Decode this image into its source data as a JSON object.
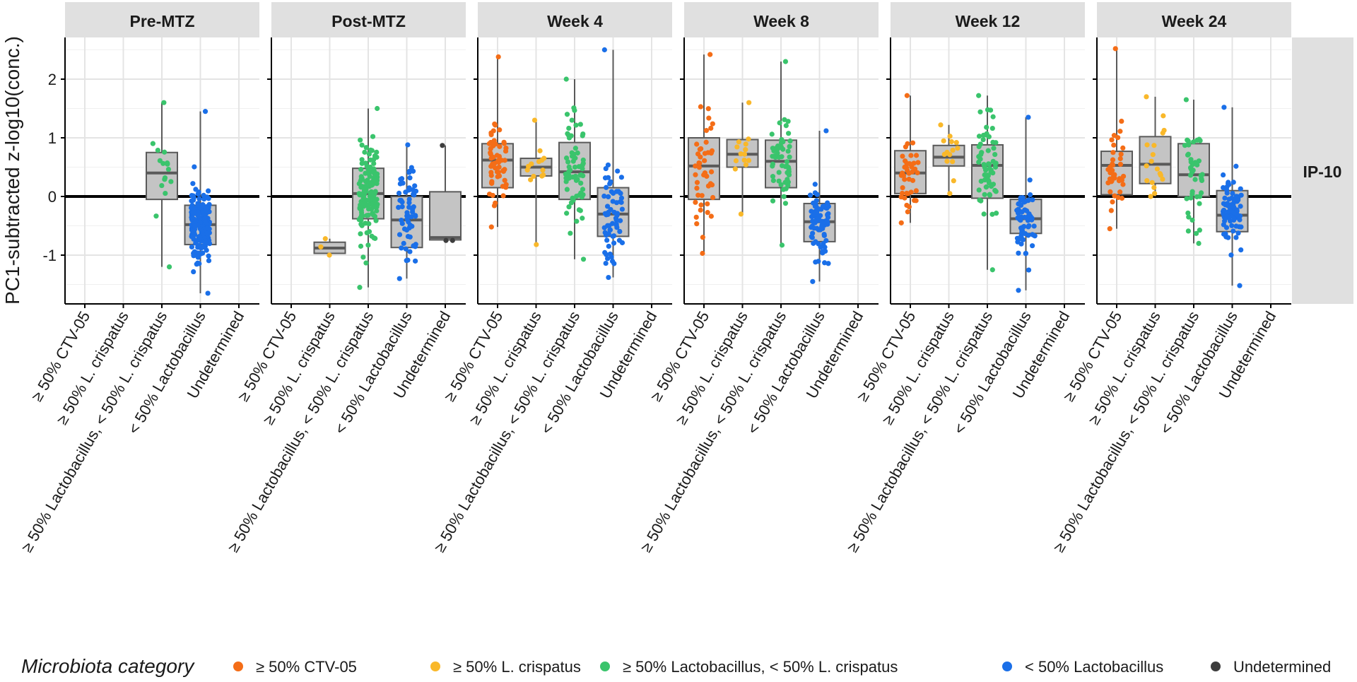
{
  "chart_data": {
    "type": "boxplot",
    "ylabel": "PC1-subtracted z-log10(conc.)",
    "row_strip": "IP-10",
    "ylim": [
      -1.85,
      2.7
    ],
    "yticks": [
      -1,
      0,
      1,
      2
    ],
    "reference_line_y": 0,
    "grid": true,
    "categories": [
      "≥ 50% CTV-05",
      "≥ 50% L. crispatus",
      "≥ 50% Lactobacillus, < 50% L. crispatus",
      "< 50% Lactobacillus",
      "Undetermined"
    ],
    "colors": [
      "#f46d17",
      "#f9b82a",
      "#3ac46c",
      "#1a6fe8",
      "#3d3d3d"
    ],
    "box_fill": "#c4c4c4",
    "box_stroke": "#5a5a5a",
    "panels": [
      {
        "title": "Pre-MTZ",
        "groups": [
          null,
          null,
          {
            "q1": -0.05,
            "median": 0.4,
            "q3": 0.75,
            "lo": -1.2,
            "hi": 1.6,
            "n": 16
          },
          {
            "q1": -0.82,
            "median": -0.48,
            "q3": -0.15,
            "lo": -1.65,
            "hi": 1.45,
            "n": 190
          },
          null
        ]
      },
      {
        "title": "Post-MTZ",
        "groups": [
          null,
          {
            "q1": -0.97,
            "median": -0.88,
            "q3": -0.78,
            "lo": -1.0,
            "hi": -0.72,
            "n": 3
          },
          {
            "q1": -0.38,
            "median": 0.05,
            "q3": 0.48,
            "lo": -1.55,
            "hi": 1.5,
            "n": 140
          },
          {
            "q1": -0.87,
            "median": -0.4,
            "q3": 0.0,
            "lo": -1.4,
            "hi": 0.88,
            "n": 60
          },
          {
            "q1": -0.74,
            "median": -0.7,
            "q3": 0.08,
            "lo": -0.75,
            "hi": 0.87,
            "n": 3
          }
        ]
      },
      {
        "title": "Week 4",
        "groups": [
          {
            "q1": 0.15,
            "median": 0.62,
            "q3": 0.9,
            "lo": -0.52,
            "hi": 2.38,
            "n": 55
          },
          {
            "q1": 0.35,
            "median": 0.5,
            "q3": 0.65,
            "lo": -0.82,
            "hi": 1.3,
            "n": 14
          },
          {
            "q1": -0.05,
            "median": 0.42,
            "q3": 0.92,
            "lo": -1.07,
            "hi": 2.0,
            "n": 65
          },
          {
            "q1": -0.68,
            "median": -0.3,
            "q3": 0.15,
            "lo": -1.38,
            "hi": 2.5,
            "n": 65
          },
          null
        ]
      },
      {
        "title": "Week 8",
        "groups": [
          {
            "q1": -0.05,
            "median": 0.52,
            "q3": 1.0,
            "lo": -0.97,
            "hi": 2.42,
            "n": 45
          },
          {
            "q1": 0.5,
            "median": 0.72,
            "q3": 0.97,
            "lo": -0.3,
            "hi": 1.6,
            "n": 14
          },
          {
            "q1": 0.15,
            "median": 0.6,
            "q3": 0.96,
            "lo": -0.83,
            "hi": 2.3,
            "n": 55
          },
          {
            "q1": -0.77,
            "median": -0.43,
            "q3": -0.12,
            "lo": -1.45,
            "hi": 1.12,
            "n": 75
          },
          null
        ]
      },
      {
        "title": "Week 12",
        "groups": [
          {
            "q1": 0.05,
            "median": 0.4,
            "q3": 0.78,
            "lo": -0.45,
            "hi": 1.72,
            "n": 40
          },
          {
            "q1": 0.52,
            "median": 0.67,
            "q3": 0.87,
            "lo": 0.05,
            "hi": 1.22,
            "n": 14
          },
          {
            "q1": -0.03,
            "median": 0.53,
            "q3": 0.88,
            "lo": -1.25,
            "hi": 1.72,
            "n": 65
          },
          {
            "q1": -0.63,
            "median": -0.38,
            "q3": -0.05,
            "lo": -1.6,
            "hi": 1.35,
            "n": 60
          },
          null
        ]
      },
      {
        "title": "Week 24",
        "groups": [
          {
            "q1": 0.03,
            "median": 0.53,
            "q3": 0.77,
            "lo": -0.55,
            "hi": 2.52,
            "n": 40
          },
          {
            "q1": 0.22,
            "median": 0.55,
            "q3": 1.02,
            "lo": 0.0,
            "hi": 1.7,
            "n": 18
          },
          {
            "q1": 0.0,
            "median": 0.37,
            "q3": 0.9,
            "lo": -0.8,
            "hi": 1.65,
            "n": 45
          },
          {
            "q1": -0.6,
            "median": -0.32,
            "q3": 0.1,
            "lo": -1.52,
            "hi": 1.52,
            "n": 80
          },
          null
        ]
      }
    ]
  },
  "legend": {
    "title": "Microbiota category",
    "items": [
      {
        "label": "≥ 50% CTV-05",
        "color": "#f46d17"
      },
      {
        "label": "≥ 50% L. crispatus",
        "color": "#f9b82a"
      },
      {
        "label": "≥ 50% Lactobacillus, < 50% L. crispatus",
        "color": "#3ac46c"
      },
      {
        "label": "< 50% Lactobacillus",
        "color": "#1a6fe8"
      },
      {
        "label": "Undetermined",
        "color": "#3d3d3d"
      }
    ]
  }
}
